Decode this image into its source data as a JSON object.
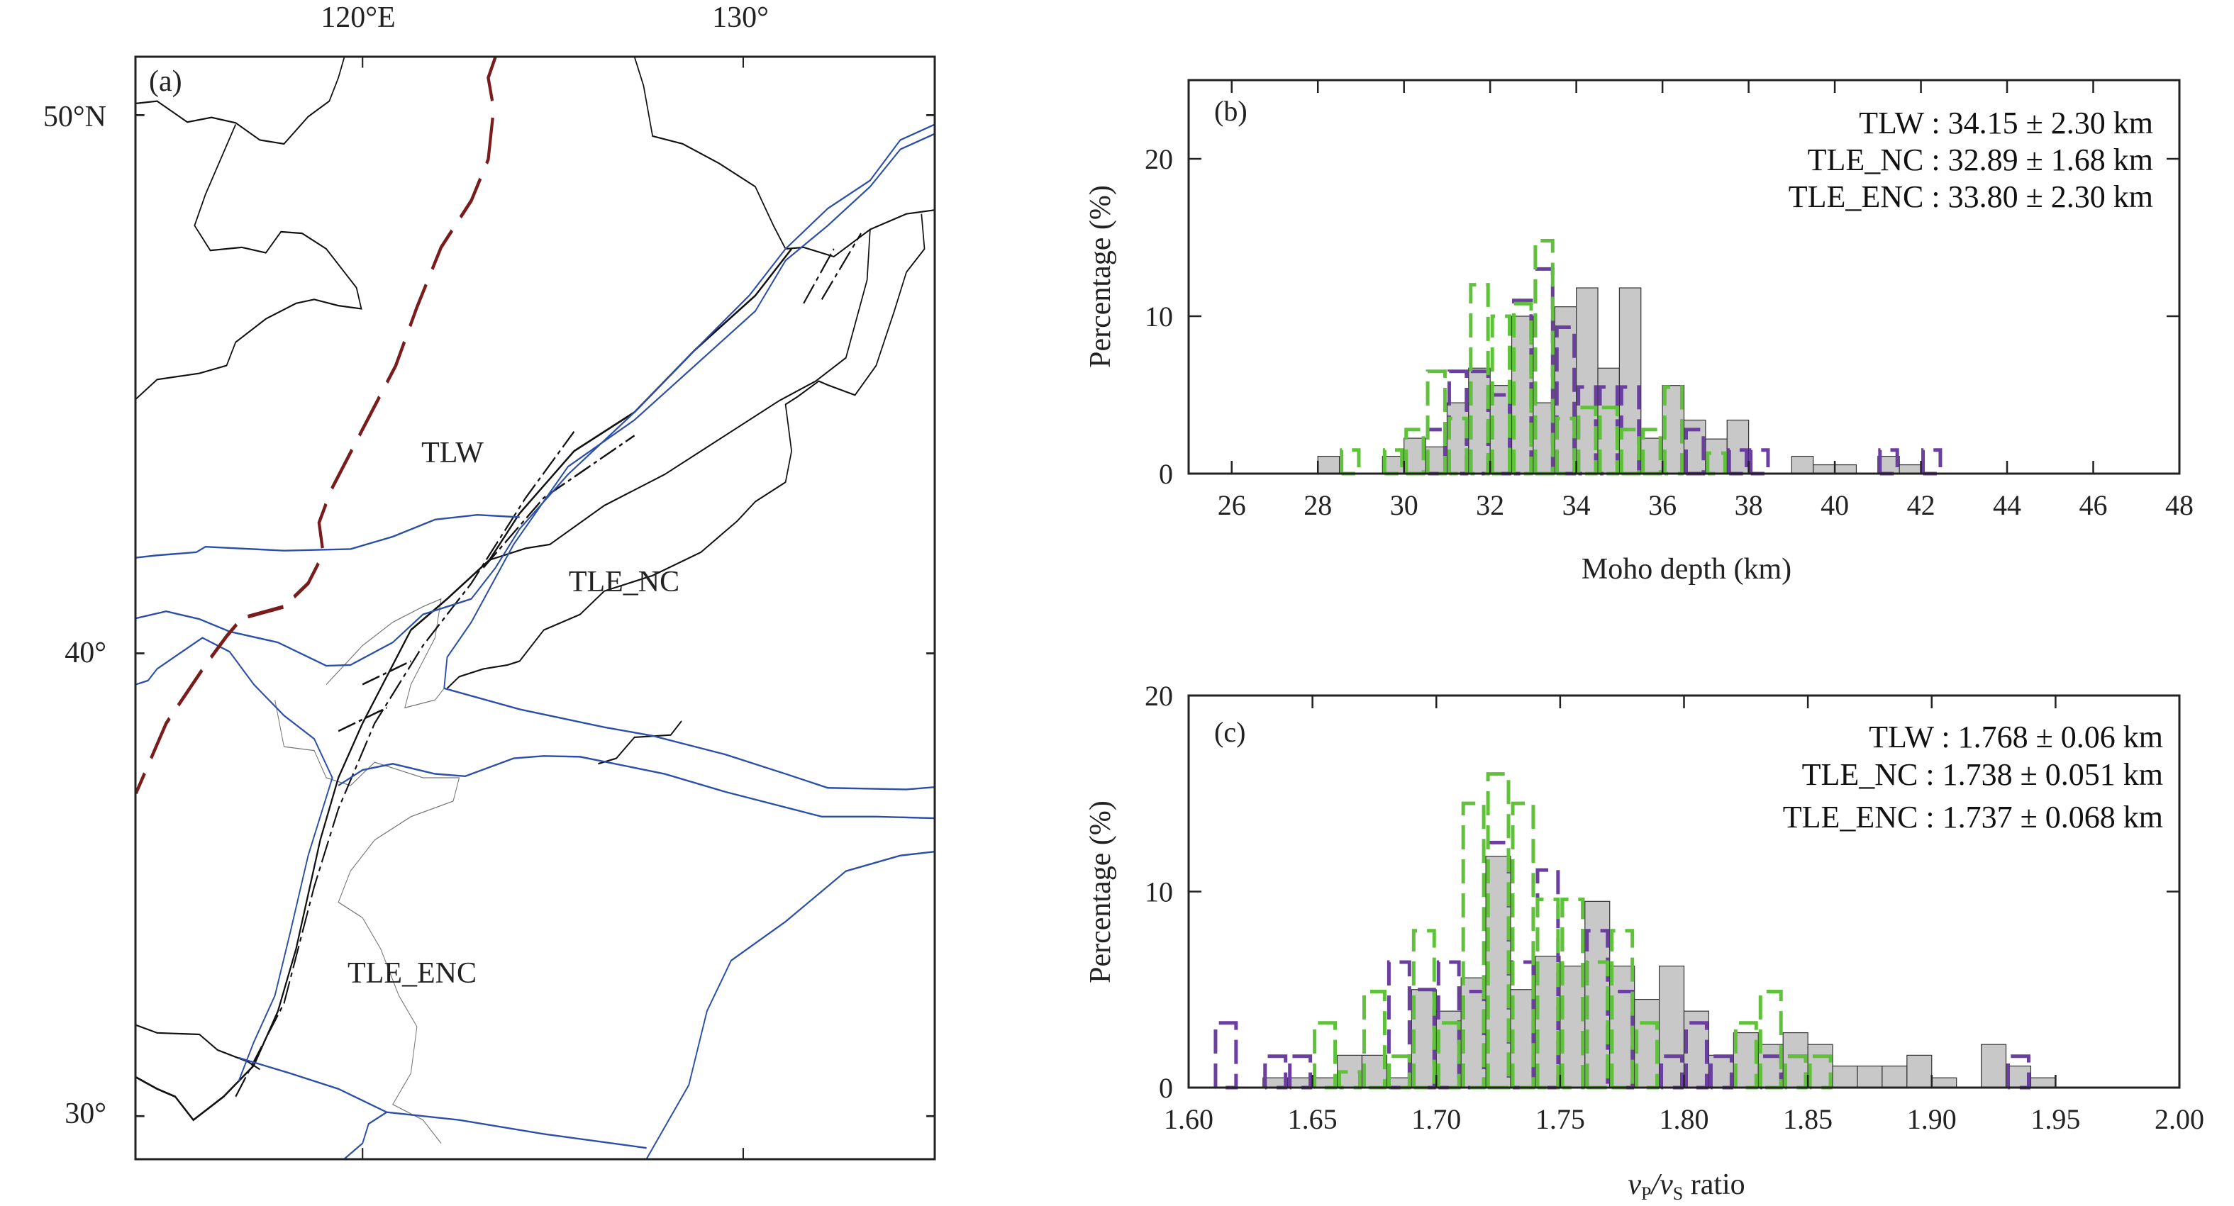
{
  "map": {
    "panel_label": "(a)",
    "lon_ticks": [
      "120°E",
      "130°"
    ],
    "lat_ticks": [
      "50°N",
      "40°",
      "30°"
    ],
    "region_labels": [
      "TLW",
      "TLE_NC",
      "TLE_ENC"
    ],
    "colors": {
      "boundary_dashed": "#7a1c1c",
      "blue_lines": "#2b4fa8",
      "borders": "#111111",
      "coast": "#777777"
    }
  },
  "chart_data": [
    {
      "type": "bar",
      "panel_label": "(b)",
      "xlabel": "Moho depth (km)",
      "ylabel": "Percentage (%)",
      "xlim": [
        25,
        48
      ],
      "ylim": [
        0,
        25
      ],
      "xticks": [
        "26",
        "28",
        "30",
        "32",
        "34",
        "36",
        "38",
        "40",
        "42",
        "44",
        "46",
        "48"
      ],
      "yticks": [
        "0",
        "10",
        "20"
      ],
      "bin_width": 0.5,
      "grid": false,
      "annotations": [
        "TLW : 34.15 ± 2.30 km",
        "TLE_NC : 32.89 ± 1.68 km",
        "TLE_ENC : 33.80 ± 2.30 km"
      ],
      "series": [
        {
          "style": "filled",
          "color": "#c8c8c8",
          "bins": [
            [
              28,
              1.1
            ],
            [
              29.5,
              1.1
            ],
            [
              30,
              2.25
            ],
            [
              30.5,
              1.7
            ],
            [
              31,
              4.5
            ],
            [
              31.5,
              6.7
            ],
            [
              32,
              5.6
            ],
            [
              32.5,
              10
            ],
            [
              33,
              4.5
            ],
            [
              33.5,
              10.6
            ],
            [
              34,
              11.8
            ],
            [
              34.5,
              6.7
            ],
            [
              35,
              11.8
            ],
            [
              35.5,
              2.25
            ],
            [
              36,
              5.6
            ],
            [
              36.5,
              3.4
            ],
            [
              37,
              2.2
            ],
            [
              37.5,
              3.4
            ],
            [
              39,
              1.1
            ],
            [
              39.5,
              0.56
            ],
            [
              40,
              0.56
            ],
            [
              41,
              1.1
            ],
            [
              41.5,
              0.56
            ]
          ]
        },
        {
          "style": "dashed",
          "color": "#6a3fa0",
          "bins": [
            [
              30.5,
              2.8
            ],
            [
              31,
              6.5
            ],
            [
              31.5,
              6.5
            ],
            [
              32,
              5.0
            ],
            [
              32.5,
              11.0
            ],
            [
              33,
              13.0
            ],
            [
              33.5,
              9.3
            ],
            [
              34,
              5.5
            ],
            [
              34.5,
              5.5
            ],
            [
              35,
              5.5
            ],
            [
              36,
              5.5
            ],
            [
              36.5,
              2.8
            ],
            [
              37.5,
              1.5
            ],
            [
              38,
              1.5
            ],
            [
              41,
              1.5
            ],
            [
              42,
              1.5
            ]
          ]
        },
        {
          "style": "dashed",
          "color": "#5fc23a",
          "bins": [
            [
              28.5,
              1.5
            ],
            [
              29.5,
              1.5
            ],
            [
              30,
              2.8
            ],
            [
              30.5,
              6.5
            ],
            [
              31,
              3.5
            ],
            [
              31.5,
              12.0
            ],
            [
              32,
              10.0
            ],
            [
              32.5,
              10.8
            ],
            [
              33,
              14.8
            ],
            [
              33.5,
              3.5
            ],
            [
              34,
              4.2
            ],
            [
              34.5,
              4.2
            ],
            [
              35,
              2.8
            ],
            [
              35.5,
              2.8
            ],
            [
              36,
              5.5
            ],
            [
              37,
              1.3
            ]
          ]
        }
      ]
    },
    {
      "type": "bar",
      "panel_label": "(c)",
      "xlabel_parts": [
        "v",
        "P",
        "/v",
        "S",
        " ratio"
      ],
      "ylabel": "Percentage (%)",
      "xlim": [
        1.6,
        2.0
      ],
      "ylim": [
        0,
        20
      ],
      "xticks": [
        "1.60",
        "1.65",
        "1.70",
        "1.75",
        "1.80",
        "1.85",
        "1.90",
        "1.95",
        "2.00"
      ],
      "yticks": [
        "0",
        "10",
        "20"
      ],
      "bin_width": 0.01,
      "grid": false,
      "annotations": [
        "TLW : 1.768 ± 0.06 km",
        "TLE_NC : 1.738 ± 0.051 km",
        "TLE_ENC : 1.737 ± 0.068 km"
      ],
      "series": [
        {
          "style": "filled",
          "color": "#c8c8c8",
          "bins": [
            [
              1.63,
              0.5
            ],
            [
              1.64,
              0.5
            ],
            [
              1.65,
              0.5
            ],
            [
              1.66,
              1.65
            ],
            [
              1.67,
              1.65
            ],
            [
              1.68,
              0.5
            ],
            [
              1.69,
              5.0
            ],
            [
              1.7,
              3.9
            ],
            [
              1.71,
              5.6
            ],
            [
              1.72,
              11.8
            ],
            [
              1.73,
              5.0
            ],
            [
              1.74,
              6.7
            ],
            [
              1.75,
              6.2
            ],
            [
              1.76,
              9.5
            ],
            [
              1.77,
              6.2
            ],
            [
              1.78,
              4.5
            ],
            [
              1.79,
              6.2
            ],
            [
              1.8,
              3.9
            ],
            [
              1.81,
              1.65
            ],
            [
              1.82,
              2.8
            ],
            [
              1.83,
              2.2
            ],
            [
              1.84,
              2.8
            ],
            [
              1.85,
              2.2
            ],
            [
              1.86,
              1.1
            ],
            [
              1.87,
              1.1
            ],
            [
              1.88,
              1.1
            ],
            [
              1.89,
              1.65
            ],
            [
              1.9,
              0.5
            ],
            [
              1.92,
              2.2
            ],
            [
              1.93,
              1.1
            ],
            [
              1.94,
              0.5
            ]
          ]
        },
        {
          "style": "dashed",
          "color": "#6a3fa0",
          "bins": [
            [
              1.61,
              3.3
            ],
            [
              1.63,
              1.6
            ],
            [
              1.64,
              1.6
            ],
            [
              1.68,
              6.4
            ],
            [
              1.69,
              5.0
            ],
            [
              1.7,
              6.4
            ],
            [
              1.71,
              4.9
            ],
            [
              1.72,
              12.5
            ],
            [
              1.73,
              6.4
            ],
            [
              1.74,
              11.1
            ],
            [
              1.75,
              9.6
            ],
            [
              1.76,
              8.0
            ],
            [
              1.77,
              4.9
            ],
            [
              1.79,
              1.6
            ],
            [
              1.8,
              3.3
            ],
            [
              1.81,
              1.6
            ],
            [
              1.83,
              1.6
            ],
            [
              1.84,
              1.6
            ],
            [
              1.93,
              1.6
            ]
          ]
        },
        {
          "style": "dashed",
          "color": "#5fc23a",
          "bins": [
            [
              1.65,
              3.3
            ],
            [
              1.66,
              0.8
            ],
            [
              1.67,
              4.9
            ],
            [
              1.68,
              1.6
            ],
            [
              1.69,
              8.0
            ],
            [
              1.7,
              3.3
            ],
            [
              1.71,
              14.5
            ],
            [
              1.72,
              16.0
            ],
            [
              1.73,
              14.5
            ],
            [
              1.74,
              9.6
            ],
            [
              1.75,
              9.6
            ],
            [
              1.76,
              6.4
            ],
            [
              1.77,
              8.0
            ],
            [
              1.78,
              3.3
            ],
            [
              1.82,
              3.3
            ],
            [
              1.83,
              4.9
            ],
            [
              1.84,
              1.6
            ],
            [
              1.85,
              1.6
            ]
          ]
        }
      ]
    }
  ]
}
